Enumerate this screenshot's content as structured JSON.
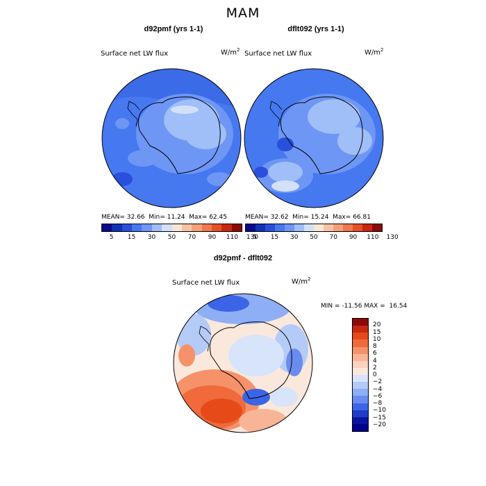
{
  "main_title": "MAM",
  "panels": [
    {
      "title": "d92pmf (yrs 1-1)",
      "field": "Surface net LW flux",
      "units_base": "W/m",
      "units_exp": "2",
      "mean_label": "MEAN=",
      "mean": "32.66",
      "min_label": "Min=",
      "min": "11.24",
      "max_label": "Max=",
      "max": "62.45"
    },
    {
      "title": "dflt092 (yrs 1-1)",
      "field": "Surface net LW flux",
      "units_base": "W/m",
      "units_exp": "2",
      "mean_label": "MEAN=",
      "mean": "32.62",
      "min_label": "Min=",
      "min": "15.24",
      "max_label": "Max=",
      "max": "66.81"
    }
  ],
  "flux_colorbar": {
    "labels": [
      "5",
      "15",
      "30",
      "50",
      "70",
      "90",
      "110",
      "130"
    ],
    "colors": [
      "#0a0a8c",
      "#1430b4",
      "#2850dc",
      "#4678f0",
      "#6e96f5",
      "#a0bef8",
      "#d2e1fa",
      "#fae6d7",
      "#f8c3a5",
      "#f5a078",
      "#f07850",
      "#e65028",
      "#c8280f",
      "#8c0a0a"
    ]
  },
  "diff_panel": {
    "title": "d92pmf - dflt092",
    "field": "Surface net LW flux",
    "units_base": "W/m",
    "units_exp": "2",
    "min_label": "MIN =",
    "min": "-11.56",
    "max_label": "MAX =",
    "max": "16.54"
  },
  "diff_colorbar": {
    "labels": [
      "20",
      "15",
      "10",
      "8",
      "6",
      "4",
      "2",
      "0",
      "−2",
      "−4",
      "−6",
      "−8",
      "−10",
      "−15",
      "−20"
    ],
    "colors": [
      "#8c0a0a",
      "#c8280f",
      "#e64a19",
      "#f06a3c",
      "#f5926a",
      "#f8b496",
      "#fad2be",
      "#fbe8dc",
      "#d8e4fa",
      "#b4cbf8",
      "#8eaef5",
      "#6a8cf0",
      "#3c64e6",
      "#1e3cc8",
      "#0a14a0",
      "#00008c"
    ]
  }
}
